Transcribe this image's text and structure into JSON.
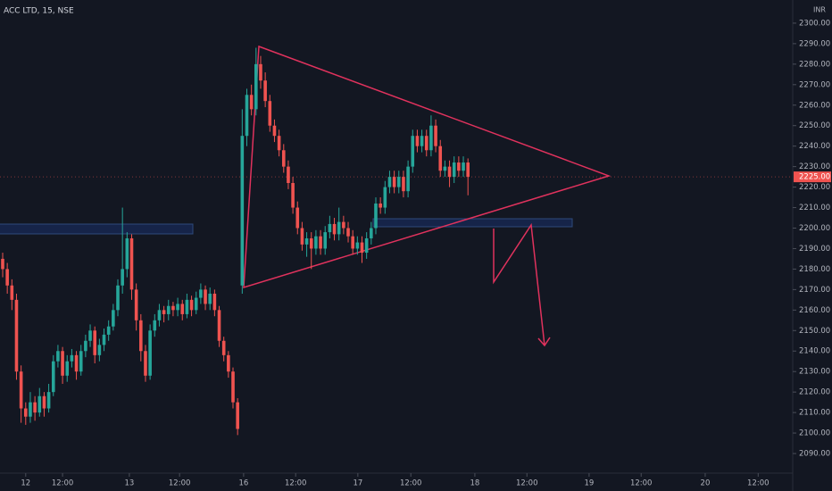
{
  "chart_data": {
    "type": "candlestick",
    "title": "ACC LTD, 15, NSE",
    "unit": "INR",
    "up_color": "#26a69a",
    "down_color": "#ef5350",
    "grid": false,
    "ylim": [
      2081.3,
      2311.3
    ],
    "yticks": [
      {
        "value": 2090,
        "label": "2090.00"
      },
      {
        "value": 2100,
        "label": "2100.00"
      },
      {
        "value": 2110,
        "label": "2110.00"
      },
      {
        "value": 2120,
        "label": "2120.00"
      },
      {
        "value": 2130,
        "label": "2130.00"
      },
      {
        "value": 2140,
        "label": "2140.00"
      },
      {
        "value": 2150,
        "label": "2150.00"
      },
      {
        "value": 2160,
        "label": "2160.00"
      },
      {
        "value": 2170,
        "label": "2170.00"
      },
      {
        "value": 2180,
        "label": "2180.00"
      },
      {
        "value": 2190,
        "label": "2190.00"
      },
      {
        "value": 2200,
        "label": "2200.00"
      },
      {
        "value": 2210,
        "label": "2210.00"
      },
      {
        "value": 2220,
        "label": "2220.00"
      },
      {
        "value": 2230,
        "label": "2230.00"
      },
      {
        "value": 2240,
        "label": "2240.00"
      },
      {
        "value": 2250,
        "label": "2250.00"
      },
      {
        "value": 2260,
        "label": "2260.00"
      },
      {
        "value": 2270,
        "label": "2270.00"
      },
      {
        "value": 2280,
        "label": "2280.00"
      },
      {
        "value": 2290,
        "label": "2290.00"
      },
      {
        "value": 2300,
        "label": "2300.00"
      }
    ],
    "last_price": {
      "value": 2225,
      "label": "2225.00"
    },
    "xlim": [
      -0.58,
      171.5
    ],
    "xticks": [
      {
        "value": 5,
        "label": "12"
      },
      {
        "value": 13,
        "label": "12:00"
      },
      {
        "value": 27.5,
        "label": "13"
      },
      {
        "value": 38.4,
        "label": "12:00"
      },
      {
        "value": 52.3,
        "label": "16"
      },
      {
        "value": 63.6,
        "label": "12:00"
      },
      {
        "value": 77.1,
        "label": "17"
      },
      {
        "value": 88.6,
        "label": "12:00"
      },
      {
        "value": 102.5,
        "label": "18"
      },
      {
        "value": 113.8,
        "label": "12:00"
      },
      {
        "value": 127.3,
        "label": "19"
      },
      {
        "value": 138.6,
        "label": "12:00"
      },
      {
        "value": 152.5,
        "label": "20"
      },
      {
        "value": 164,
        "label": "12:00"
      }
    ],
    "ohlc": [
      [
        2185,
        2188,
        2176,
        2180
      ],
      [
        2180,
        2183,
        2168,
        2172
      ],
      [
        2172,
        2175,
        2160,
        2165
      ],
      [
        2165,
        2168,
        2126,
        2130
      ],
      [
        2130,
        2133,
        2105,
        2112
      ],
      [
        2112,
        2115,
        2104,
        2108
      ],
      [
        2108,
        2120,
        2105,
        2115
      ],
      [
        2115,
        2118,
        2106,
        2110
      ],
      [
        2110,
        2122,
        2108,
        2118
      ],
      [
        2118,
        2120,
        2108,
        2112
      ],
      [
        2112,
        2124,
        2110,
        2120
      ],
      [
        2120,
        2138,
        2118,
        2135
      ],
      [
        2135,
        2143,
        2132,
        2140
      ],
      [
        2140,
        2142,
        2124,
        2128
      ],
      [
        2128,
        2138,
        2125,
        2135
      ],
      [
        2135,
        2141,
        2132,
        2138
      ],
      [
        2138,
        2140,
        2126,
        2130
      ],
      [
        2130,
        2143,
        2128,
        2140
      ],
      [
        2140,
        2148,
        2137,
        2145
      ],
      [
        2145,
        2153,
        2142,
        2150
      ],
      [
        2150,
        2152,
        2134,
        2138
      ],
      [
        2138,
        2146,
        2135,
        2143
      ],
      [
        2143,
        2151,
        2140,
        2148
      ],
      [
        2148,
        2155,
        2145,
        2152
      ],
      [
        2152,
        2163,
        2150,
        2160
      ],
      [
        2160,
        2175,
        2157,
        2172
      ],
      [
        2172,
        2210,
        2168,
        2180
      ],
      [
        2180,
        2198,
        2176,
        2195
      ],
      [
        2195,
        2197,
        2165,
        2170
      ],
      [
        2170,
        2173,
        2150,
        2155
      ],
      [
        2155,
        2158,
        2135,
        2140
      ],
      [
        2140,
        2143,
        2125,
        2128
      ],
      [
        2128,
        2153,
        2126,
        2150
      ],
      [
        2150,
        2158,
        2147,
        2155
      ],
      [
        2155,
        2163,
        2152,
        2160
      ],
      [
        2160,
        2162,
        2154,
        2158
      ],
      [
        2158,
        2165,
        2155,
        2162
      ],
      [
        2162,
        2164,
        2157,
        2160
      ],
      [
        2160,
        2166,
        2157,
        2163
      ],
      [
        2163,
        2165,
        2155,
        2158
      ],
      [
        2158,
        2168,
        2156,
        2165
      ],
      [
        2165,
        2167,
        2157,
        2160
      ],
      [
        2160,
        2169,
        2158,
        2166
      ],
      [
        2166,
        2173,
        2163,
        2170
      ],
      [
        2170,
        2172,
        2160,
        2163
      ],
      [
        2163,
        2171,
        2160,
        2168
      ],
      [
        2168,
        2170,
        2157,
        2160
      ],
      [
        2160,
        2162,
        2142,
        2145
      ],
      [
        2145,
        2147,
        2135,
        2138
      ],
      [
        2138,
        2140,
        2127,
        2130
      ],
      [
        2130,
        2132,
        2112,
        2115
      ],
      [
        2115,
        2117,
        2099,
        2102
      ],
      [
        2172,
        2258,
        2168,
        2245
      ],
      [
        2245,
        2268,
        2240,
        2265
      ],
      [
        2265,
        2270,
        2255,
        2258
      ],
      [
        2258,
        2288,
        2255,
        2280
      ],
      [
        2280,
        2284,
        2268,
        2272
      ],
      [
        2272,
        2276,
        2259,
        2262
      ],
      [
        2262,
        2265,
        2247,
        2250
      ],
      [
        2250,
        2253,
        2242,
        2245
      ],
      [
        2245,
        2248,
        2235,
        2238
      ],
      [
        2238,
        2241,
        2227,
        2230
      ],
      [
        2230,
        2233,
        2219,
        2222
      ],
      [
        2222,
        2225,
        2207,
        2210
      ],
      [
        2210,
        2213,
        2197,
        2200
      ],
      [
        2200,
        2203,
        2189,
        2192
      ],
      [
        2192,
        2198,
        2186,
        2195
      ],
      [
        2195,
        2198,
        2180,
        2190
      ],
      [
        2190,
        2199,
        2187,
        2196
      ],
      [
        2196,
        2199,
        2187,
        2190
      ],
      [
        2190,
        2201,
        2187,
        2198
      ],
      [
        2198,
        2206,
        2195,
        2202
      ],
      [
        2202,
        2205,
        2194,
        2197
      ],
      [
        2197,
        2210,
        2194,
        2203
      ],
      [
        2203,
        2206,
        2197,
        2200
      ],
      [
        2200,
        2203,
        2193,
        2196
      ],
      [
        2196,
        2199,
        2187,
        2190
      ],
      [
        2190,
        2196,
        2187,
        2193
      ],
      [
        2193,
        2196,
        2183,
        2188
      ],
      [
        2188,
        2198,
        2185,
        2195
      ],
      [
        2195,
        2203,
        2192,
        2200
      ],
      [
        2200,
        2215,
        2197,
        2212
      ],
      [
        2212,
        2215,
        2207,
        2210
      ],
      [
        2210,
        2223,
        2207,
        2220
      ],
      [
        2220,
        2228,
        2217,
        2225
      ],
      [
        2225,
        2228,
        2217,
        2220
      ],
      [
        2220,
        2228,
        2217,
        2225
      ],
      [
        2225,
        2228,
        2215,
        2218
      ],
      [
        2218,
        2233,
        2215,
        2230
      ],
      [
        2230,
        2248,
        2227,
        2245
      ],
      [
        2245,
        2248,
        2237,
        2240
      ],
      [
        2240,
        2248,
        2237,
        2245
      ],
      [
        2245,
        2248,
        2235,
        2238
      ],
      [
        2238,
        2255,
        2235,
        2250
      ],
      [
        2250,
        2253,
        2237,
        2240
      ],
      [
        2240,
        2243,
        2225,
        2228
      ],
      [
        2228,
        2233,
        2225,
        2230
      ],
      [
        2230,
        2233,
        2220,
        2225
      ],
      [
        2225,
        2235,
        2222,
        2232
      ],
      [
        2232,
        2235,
        2225,
        2228
      ],
      [
        2228,
        2235,
        2225,
        2232
      ],
      [
        2232,
        2234,
        2216,
        2225
      ]
    ]
  }
}
